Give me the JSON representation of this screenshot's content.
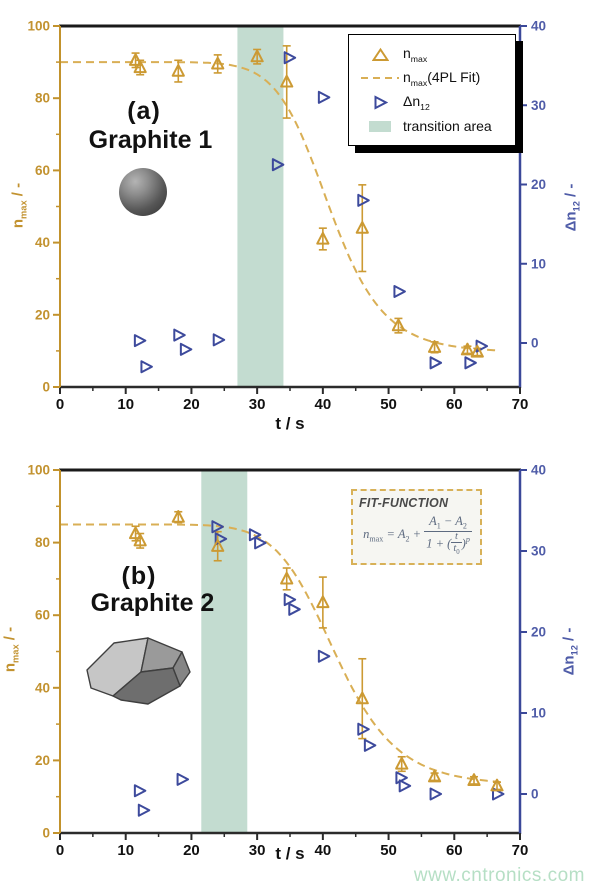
{
  "watermark": "www.cntronics.com",
  "colors": {
    "gold": "#cc9a33",
    "gold_fit": "#d9af55",
    "gold_axis": "#c2922c",
    "gold_label": "#c2922f",
    "blue": "#3d4a9c",
    "blue_axis": "#3b4899",
    "blue_label": "#4f5ca8",
    "band": "#c3dcd0",
    "x_axis": "#2b2b2b",
    "top_border": "#1a1a1a",
    "x_label": "#111111"
  },
  "legend": {
    "nmax": {
      "base": "n",
      "sub": "max",
      "rest": ""
    },
    "fit": {
      "base": "n",
      "sub": "max",
      "rest": "(4PL Fit)"
    },
    "dn12": {
      "base": "Δn",
      "sub": "12",
      "rest": ""
    },
    "band_label": "transition area"
  },
  "fitbox": {
    "title": "FIT-FUNCTION",
    "formula": {
      "lhs": "n",
      "lhs_sub": "max",
      "eq": " = ",
      "a2": "A",
      "a2_sub": "2",
      "plus": " + ",
      "n1": "A",
      "n1_sub": "1",
      "minus": " − ",
      "n2": "A",
      "n2_sub": "2",
      "den_pre": "1 + ",
      "lp": "(",
      "inner_num": "t",
      "inner_den": "t",
      "inner_den_sub": "0",
      "rp": ")",
      "exp": "p"
    }
  },
  "chart_data": [
    {
      "type": "scatter",
      "panel_label": "(a)",
      "title": "Graphite 1",
      "particle": "sphere",
      "x_label": "t / s",
      "y_left_label": {
        "base": "n",
        "sub": "max",
        "rest": " / -"
      },
      "y_right_label": {
        "base": "Δn",
        "sub": "12",
        "rest": " / -"
      },
      "x_range": [
        0,
        70
      ],
      "x_ticks": [
        0,
        10,
        20,
        30,
        40,
        50,
        60,
        70
      ],
      "x_minor_step": 5,
      "y_left_range": [
        0,
        100
      ],
      "y_left_ticks": [
        0,
        20,
        40,
        60,
        80,
        100
      ],
      "y_left_minor_step": 10,
      "y_right_range": [
        0,
        40
      ],
      "y_right_ticks": [
        0,
        10,
        20,
        30,
        40
      ],
      "transition_area": {
        "x_start": 27,
        "x_end": 34
      },
      "fit_4pl": {
        "A1": 90,
        "A2": 9.5,
        "t0": 41,
        "p": 10,
        "t_min": 0,
        "t_max": 66.5
      },
      "nmax_points": [
        {
          "t": 11.5,
          "n": 90.5,
          "err": 2
        },
        {
          "t": 12.2,
          "n": 88.5,
          "err": 2
        },
        {
          "t": 18,
          "n": 87.5,
          "err": 3
        },
        {
          "t": 24,
          "n": 89.5,
          "err": 2.5
        },
        {
          "t": 30,
          "n": 91.5,
          "err": 2
        },
        {
          "t": 34.5,
          "n": 84.5,
          "err": 10
        },
        {
          "t": 40,
          "n": 41,
          "err": 3
        },
        {
          "t": 46,
          "n": 44,
          "err": 12
        },
        {
          "t": 51.5,
          "n": 17,
          "err": 2
        },
        {
          "t": 57,
          "n": 11,
          "err": 1.5
        },
        {
          "t": 62,
          "n": 10.3,
          "err": 1
        },
        {
          "t": 63.5,
          "n": 9.7,
          "err": 1
        }
      ],
      "dn12_points": [
        {
          "t": 12,
          "dn": 0.3
        },
        {
          "t": 13,
          "dn": -3
        },
        {
          "t": 18,
          "dn": 1
        },
        {
          "t": 19,
          "dn": -0.8
        },
        {
          "t": 24,
          "dn": 0.4
        },
        {
          "t": 33,
          "dn": 22.5
        },
        {
          "t": 34.8,
          "dn": 36
        },
        {
          "t": 40,
          "dn": 31
        },
        {
          "t": 46,
          "dn": 18
        },
        {
          "t": 51.5,
          "dn": 6.5
        },
        {
          "t": 57,
          "dn": -2.5
        },
        {
          "t": 62.3,
          "dn": -2.5
        },
        {
          "t": 64,
          "dn": -0.4
        }
      ]
    },
    {
      "type": "scatter",
      "panel_label": "(b)",
      "title": "Graphite 2",
      "particle": "flake",
      "x_label": "t / s",
      "y_left_label": {
        "base": "n",
        "sub": "max",
        "rest": " / -"
      },
      "y_right_label": {
        "base": "Δn",
        "sub": "12",
        "rest": " / -"
      },
      "x_range": [
        0,
        70
      ],
      "x_ticks": [
        0,
        10,
        20,
        30,
        40,
        50,
        60,
        70
      ],
      "x_minor_step": 5,
      "y_left_range": [
        0,
        100
      ],
      "y_left_ticks": [
        0,
        20,
        40,
        60,
        80,
        100
      ],
      "y_left_minor_step": 10,
      "y_right_range": [
        0,
        40
      ],
      "y_right_ticks": [
        0,
        10,
        20,
        30,
        40
      ],
      "transition_area": {
        "x_start": 21.5,
        "x_end": 28.5
      },
      "fit_4pl": {
        "A1": 85,
        "A2": 13,
        "t0": 42,
        "p": 9,
        "t_min": 0,
        "t_max": 67
      },
      "nmax_points": [
        {
          "t": 11.5,
          "n": 82.5,
          "err": 2
        },
        {
          "t": 12.2,
          "n": 80.5,
          "err": 2
        },
        {
          "t": 18,
          "n": 87,
          "err": 1.5
        },
        {
          "t": 24,
          "n": 79,
          "err": 4
        },
        {
          "t": 34.5,
          "n": 70,
          "err": 3
        },
        {
          "t": 40,
          "n": 63.5,
          "err": 7
        },
        {
          "t": 46,
          "n": 37,
          "err": 11
        },
        {
          "t": 52,
          "n": 19,
          "err": 2
        },
        {
          "t": 57,
          "n": 15.5,
          "err": 1
        },
        {
          "t": 63,
          "n": 14.5,
          "err": 1
        },
        {
          "t": 66.5,
          "n": 13,
          "err": 1
        }
      ],
      "dn12_points": [
        {
          "t": 12,
          "dn": 0.4
        },
        {
          "t": 12.6,
          "dn": -2
        },
        {
          "t": 18.5,
          "dn": 1.8
        },
        {
          "t": 23.8,
          "dn": 33
        },
        {
          "t": 24.3,
          "dn": 31.5
        },
        {
          "t": 29.5,
          "dn": 32
        },
        {
          "t": 30.3,
          "dn": 31
        },
        {
          "t": 34.8,
          "dn": 24
        },
        {
          "t": 35.5,
          "dn": 22.8
        },
        {
          "t": 40,
          "dn": 17
        },
        {
          "t": 46,
          "dn": 8
        },
        {
          "t": 47,
          "dn": 6
        },
        {
          "t": 51.8,
          "dn": 2
        },
        {
          "t": 52.3,
          "dn": 1
        },
        {
          "t": 57,
          "dn": 0
        },
        {
          "t": 66.5,
          "dn": 0
        }
      ]
    }
  ]
}
